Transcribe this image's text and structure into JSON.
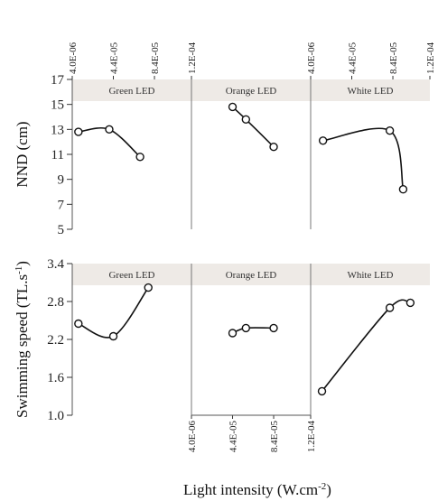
{
  "chart_data": {
    "type": "line",
    "x_axis": {
      "label": "Light intensity (W.cm",
      "label_sup": "-2",
      "label_end": ")",
      "ticks": [
        4e-06,
        4.4e-05,
        8.4e-05,
        0.00012
      ],
      "tick_labels": [
        "4.0E-06",
        "4.4E-05",
        "8.4E-05",
        "1.2E-04"
      ],
      "range": [
        4e-06,
        0.00012
      ]
    },
    "rows": [
      {
        "ylabel": "NND (cm)",
        "ylim": [
          5,
          17
        ],
        "yticks": [
          5,
          7,
          9,
          11,
          13,
          15,
          17
        ],
        "panels": [
          {
            "title": "Green LED",
            "x": [
              1e-05,
              4e-05,
              7e-05
            ],
            "values": [
              12.8,
              13.0,
              10.8
            ]
          },
          {
            "title": "Orange LED",
            "x": [
              4.4e-05,
              5.7e-05,
              8.4e-05
            ],
            "values": [
              14.8,
              13.8,
              11.6
            ]
          },
          {
            "title": "White LED",
            "x": [
              1.6e-05,
              8.1e-05,
              9.4e-05
            ],
            "values": [
              12.1,
              12.9,
              8.2
            ]
          }
        ]
      },
      {
        "ylabel": "Swimming speed (TL.s",
        "ylabel_sup": "-1",
        "ylabel_end": ")",
        "ylim": [
          1.0,
          3.4
        ],
        "yticks": [
          1.0,
          1.6,
          2.2,
          2.8,
          3.4
        ],
        "ytick_labels": [
          "1.0",
          "1.6",
          "2.2",
          "2.8",
          "3.4"
        ],
        "panels": [
          {
            "title": "Green LED",
            "x": [
              1e-05,
              4.4e-05,
              7.8e-05
            ],
            "values": [
              2.45,
              2.25,
              3.02
            ]
          },
          {
            "title": "Orange LED",
            "x": [
              4.4e-05,
              5.7e-05,
              8.4e-05
            ],
            "values": [
              2.3,
              2.38,
              2.38
            ]
          },
          {
            "title": "White LED",
            "x": [
              1.5e-05,
              8.1e-05,
              0.000101
            ],
            "values": [
              1.38,
              2.7,
              2.78
            ]
          }
        ]
      }
    ]
  }
}
